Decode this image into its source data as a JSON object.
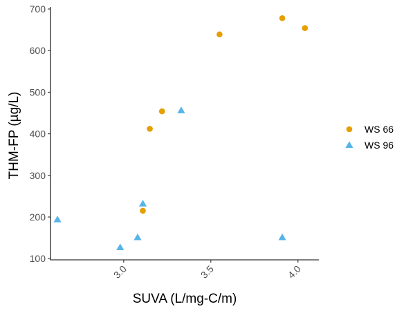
{
  "chart_data": {
    "type": "scatter",
    "title": "",
    "xlabel": "SUVA (L/mg-C/m)",
    "ylabel": "THM-FP (µg/L)",
    "xlim": [
      2.58,
      4.12
    ],
    "ylim": [
      97,
      705
    ],
    "x_ticks": [
      3.0,
      3.5,
      4.0
    ],
    "x_tick_labels": [
      "3.0",
      "3.5",
      "4.0"
    ],
    "y_ticks": [
      100,
      200,
      300,
      400,
      500,
      600,
      700
    ],
    "y_tick_labels": [
      "100",
      "200",
      "300",
      "400",
      "500",
      "600",
      "700"
    ],
    "grid": false,
    "legend_position": "right",
    "series": [
      {
        "name": "WS 66",
        "marker": "circle",
        "color": "#E69F00",
        "points": [
          {
            "x": 3.11,
            "y": 215
          },
          {
            "x": 3.15,
            "y": 412
          },
          {
            "x": 3.22,
            "y": 454
          },
          {
            "x": 3.55,
            "y": 639
          },
          {
            "x": 3.91,
            "y": 678
          },
          {
            "x": 4.04,
            "y": 654
          }
        ]
      },
      {
        "name": "WS 96",
        "marker": "triangle",
        "color": "#56B4E9",
        "points": [
          {
            "x": 2.62,
            "y": 194
          },
          {
            "x": 2.98,
            "y": 127
          },
          {
            "x": 3.08,
            "y": 151
          },
          {
            "x": 3.11,
            "y": 232
          },
          {
            "x": 3.33,
            "y": 456
          },
          {
            "x": 3.91,
            "y": 151
          }
        ]
      }
    ]
  }
}
